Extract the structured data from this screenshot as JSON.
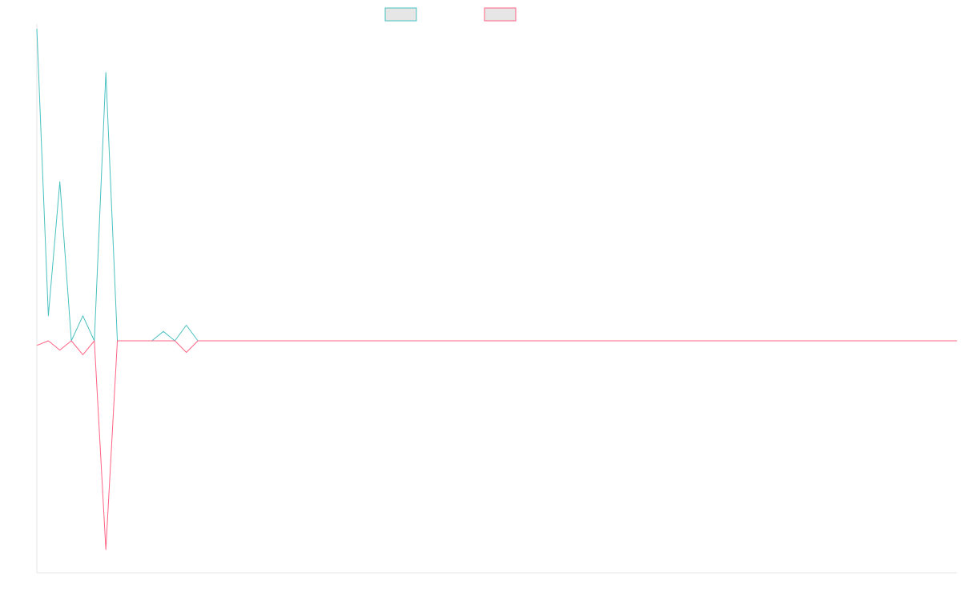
{
  "chart_data": {
    "type": "line",
    "title": "",
    "xlabel": "",
    "ylabel": "",
    "grid": false,
    "legend": "top-center",
    "ylim": [
      -1,
      1
    ],
    "colors": {
      "series_a": "#4bc0c0",
      "series_b": "#ff6384",
      "legend_fill": "#e6e6e6",
      "axis": "#e6e6e6"
    },
    "series": [
      {
        "name": "",
        "color": "#4bc0c0",
        "points": [
          [
            0,
            1.0
          ],
          [
            1,
            0.08
          ],
          [
            2,
            0.51
          ],
          [
            3,
            0.0
          ],
          [
            4,
            0.08
          ],
          [
            5,
            0.0
          ],
          [
            6,
            0.86
          ],
          [
            7,
            0.0
          ],
          [
            8,
            0.0
          ],
          [
            9,
            0.0
          ],
          [
            10,
            0.0
          ],
          [
            11,
            0.03
          ],
          [
            12,
            0.0
          ],
          [
            13,
            0.05
          ],
          [
            14,
            0.0
          ],
          [
            15,
            0.0
          ],
          [
            16,
            0.0
          ],
          [
            17,
            0.0
          ],
          [
            18,
            0.0
          ],
          [
            19,
            0.0
          ],
          [
            20,
            0.0
          ],
          [
            21,
            0.0
          ],
          [
            22,
            0.0
          ],
          [
            23,
            0.0
          ],
          [
            24,
            0.0
          ],
          [
            25,
            0.0
          ],
          [
            26,
            0.0
          ],
          [
            27,
            0.0
          ],
          [
            28,
            0.0
          ],
          [
            29,
            0.0
          ],
          [
            30,
            0.0
          ],
          [
            31,
            0.0
          ],
          [
            32,
            0.0
          ],
          [
            33,
            0.0
          ],
          [
            34,
            0.0
          ],
          [
            35,
            0.0
          ],
          [
            36,
            0.0
          ],
          [
            37,
            0.0
          ],
          [
            38,
            0.0
          ],
          [
            39,
            0.0
          ],
          [
            40,
            0.0
          ],
          [
            41,
            0.0
          ],
          [
            42,
            0.0
          ],
          [
            43,
            0.0
          ],
          [
            44,
            0.0
          ],
          [
            45,
            0.0
          ],
          [
            46,
            0.0
          ],
          [
            47,
            0.0
          ],
          [
            48,
            0.0
          ],
          [
            49,
            0.0
          ],
          [
            50,
            0.0
          ],
          [
            51,
            0.0
          ],
          [
            52,
            0.0
          ],
          [
            53,
            0.0
          ],
          [
            54,
            0.0
          ],
          [
            55,
            0.0
          ],
          [
            56,
            0.0
          ],
          [
            57,
            0.0
          ],
          [
            58,
            0.0
          ],
          [
            59,
            0.0
          ],
          [
            60,
            0.0
          ],
          [
            61,
            0.0
          ],
          [
            62,
            0.0
          ],
          [
            63,
            0.0
          ],
          [
            64,
            0.0
          ],
          [
            65,
            0.0
          ],
          [
            66,
            0.0
          ],
          [
            67,
            0.0
          ],
          [
            68,
            0.0
          ],
          [
            69,
            0.0
          ],
          [
            70,
            0.0
          ],
          [
            71,
            0.0
          ],
          [
            72,
            0.0
          ],
          [
            73,
            0.0
          ],
          [
            74,
            0.0
          ],
          [
            75,
            0.0
          ],
          [
            76,
            0.0
          ],
          [
            77,
            0.0
          ],
          [
            78,
            0.0
          ],
          [
            79,
            0.0
          ],
          [
            80,
            0.0
          ]
        ]
      },
      {
        "name": "",
        "color": "#ff6384",
        "points": [
          [
            0,
            -0.02
          ],
          [
            1,
            0.0
          ],
          [
            2,
            -0.04
          ],
          [
            3,
            0.0
          ],
          [
            4,
            -0.06
          ],
          [
            5,
            0.0
          ],
          [
            6,
            -0.9
          ],
          [
            7,
            0.0
          ],
          [
            8,
            0.0
          ],
          [
            9,
            0.0
          ],
          [
            10,
            0.0
          ],
          [
            11,
            0.0
          ],
          [
            12,
            0.0
          ],
          [
            13,
            -0.05
          ],
          [
            14,
            0.0
          ],
          [
            15,
            0.0
          ],
          [
            16,
            0.0
          ],
          [
            17,
            0.0
          ],
          [
            18,
            0.0
          ],
          [
            19,
            0.0
          ],
          [
            20,
            0.0
          ],
          [
            21,
            0.0
          ],
          [
            22,
            0.0
          ],
          [
            23,
            0.0
          ],
          [
            24,
            0.0
          ],
          [
            25,
            0.0
          ],
          [
            26,
            0.0
          ],
          [
            27,
            0.0
          ],
          [
            28,
            0.0
          ],
          [
            29,
            0.0
          ],
          [
            30,
            0.0
          ],
          [
            31,
            0.0
          ],
          [
            32,
            0.0
          ],
          [
            33,
            0.0
          ],
          [
            34,
            0.0
          ],
          [
            35,
            0.0
          ],
          [
            36,
            0.0
          ],
          [
            37,
            0.0
          ],
          [
            38,
            0.0
          ],
          [
            39,
            0.0
          ],
          [
            40,
            0.0
          ],
          [
            41,
            0.0
          ],
          [
            42,
            0.0
          ],
          [
            43,
            0.0
          ],
          [
            44,
            0.0
          ],
          [
            45,
            0.0
          ],
          [
            46,
            0.0
          ],
          [
            47,
            0.0
          ],
          [
            48,
            0.0
          ],
          [
            49,
            0.0
          ],
          [
            50,
            0.0
          ],
          [
            51,
            0.0
          ],
          [
            52,
            0.0
          ],
          [
            53,
            0.0
          ],
          [
            54,
            0.0
          ],
          [
            55,
            0.0
          ],
          [
            56,
            0.0
          ],
          [
            57,
            0.0
          ],
          [
            58,
            0.0
          ],
          [
            59,
            0.0
          ],
          [
            60,
            0.0
          ],
          [
            61,
            0.0
          ],
          [
            62,
            0.0
          ],
          [
            63,
            0.0
          ],
          [
            64,
            0.0
          ],
          [
            65,
            0.0
          ],
          [
            66,
            0.0
          ],
          [
            67,
            0.0
          ],
          [
            68,
            0.0
          ],
          [
            69,
            0.0
          ],
          [
            70,
            0.0
          ],
          [
            71,
            0.0
          ],
          [
            72,
            0.0
          ],
          [
            73,
            0.0
          ],
          [
            74,
            0.0
          ],
          [
            75,
            0.0
          ],
          [
            76,
            0.0
          ],
          [
            77,
            0.0
          ],
          [
            78,
            0.0
          ],
          [
            79,
            0.0
          ],
          [
            80,
            0.0
          ]
        ]
      }
    ]
  }
}
